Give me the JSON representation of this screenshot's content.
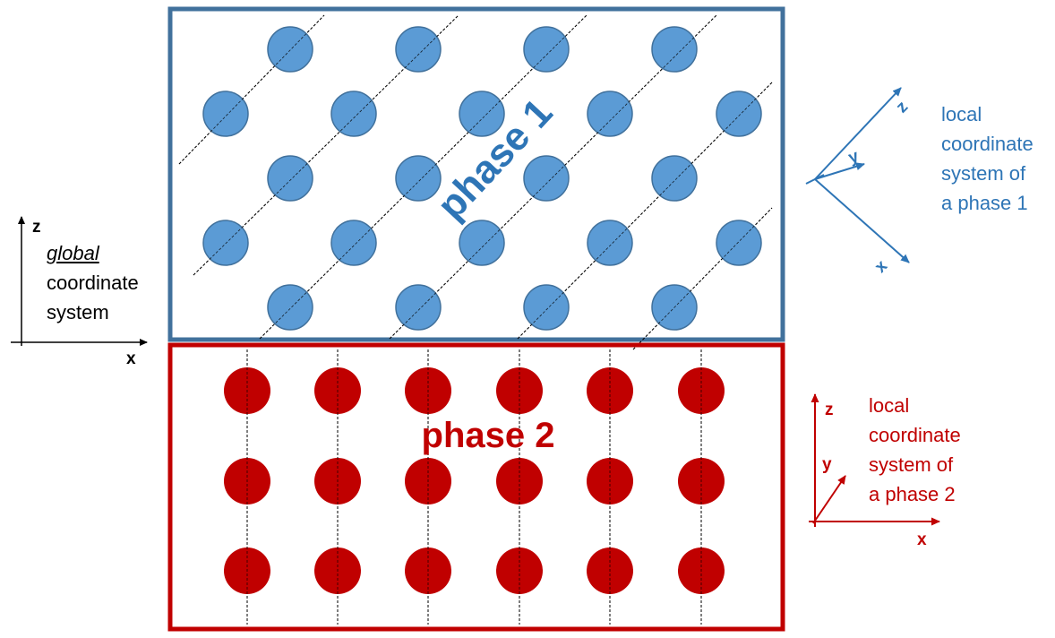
{
  "phase1": {
    "title": "phase 1",
    "color": "#2e75b6",
    "frame_color": "#41719c",
    "particle_fill": "#5b9bd5",
    "particle_stroke": "#41719c",
    "local_axes": {
      "z": "z",
      "y": "y",
      "x": "x"
    },
    "caption": [
      "local",
      "coordinate",
      "system of",
      "a phase 1"
    ]
  },
  "phase2": {
    "title": "phase 2",
    "color": "#c00000",
    "frame_color": "#c00000",
    "particle_fill": "#c00000",
    "local_axes": {
      "z": "z",
      "y": "y",
      "x": "x"
    },
    "caption": [
      "local",
      "coordinate",
      "system of",
      "a phase 2"
    ]
  },
  "global": {
    "axes": {
      "z": "z",
      "x": "x"
    },
    "caption_emphasis": "global",
    "caption_rest": [
      "coordinate",
      "system"
    ]
  }
}
